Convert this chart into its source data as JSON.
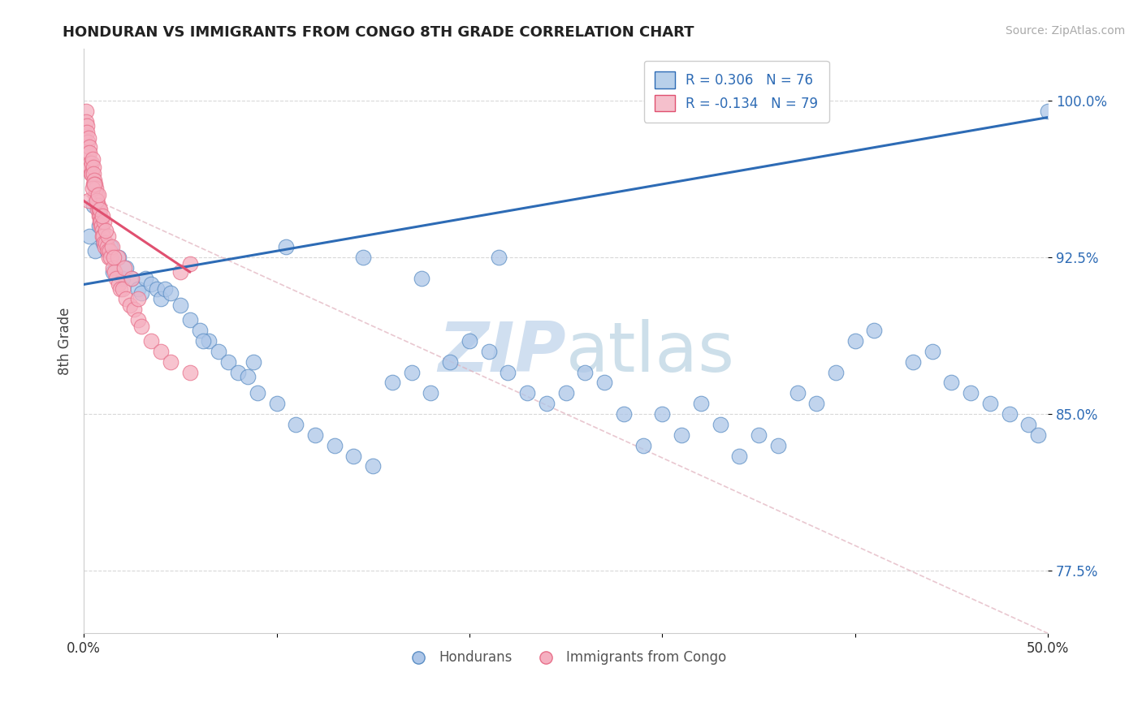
{
  "title": "HONDURAN VS IMMIGRANTS FROM CONGO 8TH GRADE CORRELATION CHART",
  "source_text": "Source: ZipAtlas.com",
  "ylabel": "8th Grade",
  "x_min": 0.0,
  "x_max": 50.0,
  "y_min": 74.5,
  "y_max": 102.5,
  "y_ticks": [
    77.5,
    85.0,
    92.5,
    100.0
  ],
  "y_tick_labels": [
    "77.5%",
    "85.0%",
    "92.5%",
    "100.0%"
  ],
  "x_ticks": [
    0,
    10,
    20,
    30,
    40,
    50
  ],
  "x_tick_labels": [
    "0.0%",
    "",
    "",
    "",
    "",
    "50.0%"
  ],
  "blue_R": 0.306,
  "blue_N": 76,
  "pink_R": -0.134,
  "pink_N": 79,
  "blue_color": "#adc6e8",
  "pink_color": "#f5afc0",
  "blue_edge_color": "#5b8ec4",
  "pink_edge_color": "#e8708a",
  "blue_line_color": "#2d6bb5",
  "pink_line_color": "#e05070",
  "legend_blue_fill": "#b8d0ea",
  "legend_pink_fill": "#f5c0cc",
  "watermark_color": "#d0dff0",
  "grid_color": "#d8d8d8",
  "background_color": "#ffffff",
  "blue_trend_x0": 0.0,
  "blue_trend_y0": 91.2,
  "blue_trend_x1": 50.0,
  "blue_trend_y1": 99.2,
  "pink_trend_x0": 0.0,
  "pink_trend_y0": 95.2,
  "pink_trend_x1": 5.5,
  "pink_trend_y1": 91.8,
  "diag_x0": 0.0,
  "diag_y0": 95.5,
  "diag_x1": 50.0,
  "diag_y1": 74.5,
  "blue_x": [
    0.3,
    0.5,
    0.6,
    0.8,
    1.0,
    1.2,
    1.4,
    1.5,
    1.8,
    2.0,
    2.2,
    2.5,
    2.8,
    3.0,
    3.2,
    3.5,
    3.8,
    4.0,
    4.2,
    4.5,
    5.0,
    5.5,
    6.0,
    6.5,
    7.0,
    7.5,
    8.0,
    8.5,
    9.0,
    10.0,
    11.0,
    12.0,
    13.0,
    14.0,
    15.0,
    16.0,
    17.0,
    18.0,
    19.0,
    20.0,
    21.0,
    22.0,
    23.0,
    24.0,
    25.0,
    26.0,
    27.0,
    28.0,
    29.0,
    30.0,
    31.0,
    32.0,
    33.0,
    34.0,
    35.0,
    36.0,
    37.0,
    38.0,
    39.0,
    40.0,
    41.0,
    43.0,
    44.0,
    45.0,
    46.0,
    47.0,
    48.0,
    49.0,
    49.5,
    50.0,
    10.5,
    14.5,
    17.5,
    21.5,
    6.2,
    8.8
  ],
  "blue_y": [
    93.5,
    95.0,
    92.8,
    94.0,
    93.2,
    92.8,
    93.0,
    91.8,
    92.5,
    91.5,
    92.0,
    91.5,
    91.0,
    90.8,
    91.5,
    91.2,
    91.0,
    90.5,
    91.0,
    90.8,
    90.2,
    89.5,
    89.0,
    88.5,
    88.0,
    87.5,
    87.0,
    86.8,
    86.0,
    85.5,
    84.5,
    84.0,
    83.5,
    83.0,
    82.5,
    86.5,
    87.0,
    86.0,
    87.5,
    88.5,
    88.0,
    87.0,
    86.0,
    85.5,
    86.0,
    87.0,
    86.5,
    85.0,
    83.5,
    85.0,
    84.0,
    85.5,
    84.5,
    83.0,
    84.0,
    83.5,
    86.0,
    85.5,
    87.0,
    88.5,
    89.0,
    87.5,
    88.0,
    86.5,
    86.0,
    85.5,
    85.0,
    84.5,
    84.0,
    99.5,
    93.0,
    92.5,
    91.5,
    92.5,
    88.5,
    87.5
  ],
  "pink_x": [
    0.05,
    0.1,
    0.12,
    0.15,
    0.18,
    0.2,
    0.22,
    0.25,
    0.28,
    0.3,
    0.32,
    0.35,
    0.38,
    0.4,
    0.42,
    0.45,
    0.48,
    0.5,
    0.52,
    0.55,
    0.58,
    0.6,
    0.62,
    0.65,
    0.68,
    0.7,
    0.72,
    0.75,
    0.78,
    0.8,
    0.82,
    0.85,
    0.88,
    0.9,
    0.92,
    0.95,
    0.98,
    1.0,
    1.05,
    1.1,
    1.15,
    1.2,
    1.25,
    1.3,
    1.35,
    1.4,
    1.5,
    1.6,
    1.7,
    1.8,
    1.9,
    2.0,
    2.2,
    2.4,
    2.6,
    2.8,
    3.0,
    3.5,
    4.0,
    4.5,
    5.0,
    5.5,
    0.25,
    0.45,
    0.65,
    0.85,
    1.05,
    1.25,
    1.45,
    1.75,
    2.1,
    2.5,
    0.55,
    0.75,
    0.95,
    1.15,
    1.55,
    2.8,
    5.5
  ],
  "pink_y": [
    98.5,
    99.5,
    99.0,
    98.8,
    98.5,
    98.0,
    97.5,
    98.2,
    97.8,
    97.5,
    97.0,
    96.8,
    96.5,
    96.5,
    97.0,
    97.2,
    96.8,
    96.5,
    96.0,
    96.2,
    96.0,
    95.5,
    95.8,
    95.5,
    95.2,
    95.0,
    94.8,
    95.0,
    94.5,
    94.8,
    94.5,
    94.2,
    94.0,
    94.2,
    94.0,
    93.8,
    93.5,
    93.5,
    93.2,
    93.0,
    93.2,
    93.0,
    92.8,
    92.5,
    92.8,
    92.5,
    92.0,
    91.8,
    91.5,
    91.2,
    91.0,
    91.0,
    90.5,
    90.2,
    90.0,
    89.5,
    89.2,
    88.5,
    88.0,
    87.5,
    91.8,
    92.2,
    95.2,
    95.8,
    95.2,
    94.8,
    94.2,
    93.5,
    93.0,
    92.5,
    92.0,
    91.5,
    96.0,
    95.5,
    94.5,
    93.8,
    92.5,
    90.5,
    87.0
  ]
}
